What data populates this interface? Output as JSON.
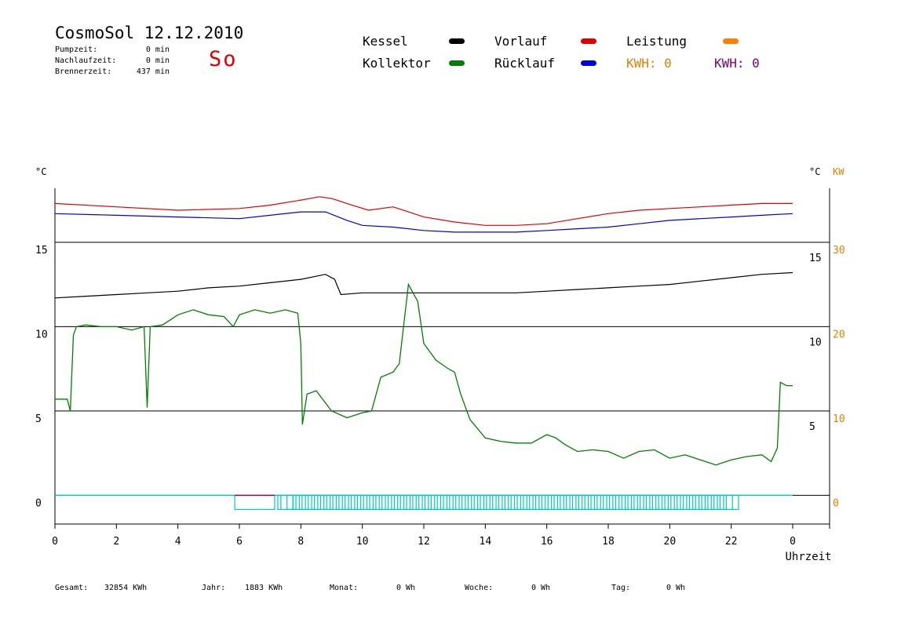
{
  "header": {
    "title": "CosmoSol 12.12.2010",
    "pump_label": "Pumpzeit:",
    "pump_value": "0 min",
    "run_on_label": "Nachlaufzeit:",
    "run_on_value": "0 min",
    "burner_label": "Brennerzeit:",
    "burner_value": "437 min",
    "weekday": "So"
  },
  "legend": {
    "kessel": "Kessel",
    "kollektor": "Kollektor",
    "vorlauf": "Vorlauf",
    "ruecklauf": "Rücklauf",
    "leistung": "Leistung",
    "kwh1": "KWH: 0",
    "kwh2": "KWH: 0"
  },
  "colors": {
    "kessel": "#000000",
    "kollektor": "#008000",
    "vorlauf": "#e00000",
    "ruecklauf": "#0000e0",
    "leistung": "#ff8000",
    "kwh2": "#800080",
    "pump": "#00c8c8"
  },
  "footer": {
    "gesamt_label": "Gesamt:",
    "gesamt_value": "32854 KWh",
    "jahr_label": "Jahr:",
    "jahr_value": "1883 KWh",
    "monat_label": "Monat:",
    "monat_value": "0 Wh",
    "woche_label": "Woche:",
    "woche_value": "0 Wh",
    "tag_label": "Tag:",
    "tag_value": "0 Wh"
  },
  "chart_data": {
    "type": "line",
    "xlabel": "Uhrzeit",
    "x_ticks": [
      "0",
      "2",
      "4",
      "6",
      "8",
      "10",
      "12",
      "14",
      "16",
      "18",
      "20",
      "22",
      "0"
    ],
    "xlim": [
      0,
      24
    ],
    "y_left": {
      "unit": "°C",
      "ticks": [
        0,
        5,
        10,
        15
      ],
      "ylim": [
        -1.7,
        18.2
      ]
    },
    "y_right_axis": {
      "unit": "°C",
      "ticks": [
        5,
        10,
        15
      ]
    },
    "y_right_power": {
      "unit": "KW",
      "ticks": [
        0,
        10,
        20,
        30
      ]
    },
    "grid": "horizontal",
    "series": [
      {
        "name": "Vorlauf",
        "axis": "left",
        "x": [
          0,
          2,
          4,
          6,
          7,
          8,
          8.6,
          9,
          9.5,
          10.2,
          11,
          11.5,
          12,
          13,
          14,
          15,
          16,
          17,
          18,
          19,
          20,
          21,
          22,
          23,
          24
        ],
        "y": [
          17.3,
          17.1,
          16.9,
          17.0,
          17.2,
          17.5,
          17.7,
          17.6,
          17.3,
          16.9,
          17.1,
          16.8,
          16.5,
          16.2,
          16.0,
          16.0,
          16.1,
          16.4,
          16.7,
          16.9,
          17.0,
          17.1,
          17.2,
          17.3,
          17.3
        ]
      },
      {
        "name": "Rücklauf",
        "axis": "left",
        "x": [
          0,
          2,
          4,
          6,
          7,
          8,
          8.8,
          9.5,
          10,
          11,
          12,
          13,
          14,
          15,
          16,
          17,
          18,
          19,
          20,
          21,
          22,
          23,
          24
        ],
        "y": [
          16.7,
          16.6,
          16.5,
          16.4,
          16.6,
          16.8,
          16.8,
          16.3,
          16.0,
          15.9,
          15.7,
          15.6,
          15.6,
          15.6,
          15.7,
          15.8,
          15.9,
          16.1,
          16.3,
          16.4,
          16.5,
          16.6,
          16.7
        ]
      },
      {
        "name": "Kessel",
        "axis": "left",
        "x": [
          0,
          1,
          2,
          3,
          4,
          5,
          6,
          7,
          8,
          8.8,
          9.1,
          9.3,
          10,
          11,
          12,
          13,
          14,
          15,
          16,
          17,
          18,
          19,
          20,
          21,
          22,
          23,
          24
        ],
        "y": [
          11.7,
          11.8,
          11.9,
          12.0,
          12.1,
          12.3,
          12.4,
          12.6,
          12.8,
          13.1,
          12.8,
          11.9,
          12.0,
          12.0,
          12.0,
          12.0,
          12.0,
          12.0,
          12.1,
          12.2,
          12.3,
          12.4,
          12.5,
          12.7,
          12.9,
          13.1,
          13.2
        ]
      },
      {
        "name": "Kollektor",
        "axis": "left",
        "x": [
          0,
          0.4,
          0.5,
          0.6,
          0.7,
          1.0,
          1.5,
          2.0,
          2.5,
          2.9,
          3.0,
          3.1,
          3.5,
          4.0,
          4.5,
          5.0,
          5.5,
          5.8,
          6.0,
          6.5,
          7.0,
          7.5,
          7.9,
          8.0,
          8.05,
          8.2,
          8.5,
          9.0,
          9.5,
          10.0,
          10.3,
          10.6,
          11.0,
          11.2,
          11.5,
          11.8,
          12.0,
          12.4,
          12.8,
          13.0,
          13.2,
          13.5,
          14.0,
          14.5,
          15.0,
          15.5,
          16.0,
          16.3,
          16.6,
          17.0,
          17.5,
          18.0,
          18.5,
          19.0,
          19.5,
          20.0,
          20.5,
          21.0,
          21.5,
          22.0,
          22.5,
          23.0,
          23.3,
          23.5,
          23.6,
          23.8,
          24.0
        ],
        "y": [
          5.7,
          5.7,
          5.0,
          9.5,
          10.0,
          10.1,
          10.0,
          10.0,
          9.8,
          10.0,
          5.2,
          10.0,
          10.1,
          10.7,
          11.0,
          10.7,
          10.6,
          10.0,
          10.7,
          11.0,
          10.8,
          11.0,
          10.8,
          9.0,
          4.2,
          6.0,
          6.2,
          5.0,
          4.6,
          4.9,
          5.0,
          7.0,
          7.3,
          7.8,
          12.5,
          11.5,
          9.0,
          8.0,
          7.5,
          7.3,
          6.0,
          4.5,
          3.4,
          3.2,
          3.1,
          3.1,
          3.6,
          3.4,
          3.0,
          2.6,
          2.7,
          2.6,
          2.2,
          2.6,
          2.7,
          2.2,
          2.4,
          2.1,
          1.8,
          2.1,
          2.3,
          2.4,
          2.0,
          2.8,
          6.7,
          6.5,
          6.5
        ]
      }
    ],
    "pump_state": {
      "label": "",
      "x": [
        5.85,
        7.25,
        7.35,
        7.55,
        7.75,
        7.95,
        8.15,
        8.35,
        8.55,
        8.75,
        8.95,
        9.15,
        9.35,
        9.55,
        9.75,
        9.95,
        10.15,
        10.35,
        10.55,
        10.75,
        10.95,
        11.15,
        11.35,
        11.55,
        11.75,
        11.95,
        12.15,
        12.35,
        12.55,
        12.75,
        12.95,
        13.15,
        13.35,
        13.55,
        13.75,
        13.95,
        14.15,
        14.35,
        14.55,
        14.75,
        14.95,
        15.15,
        15.35,
        15.55,
        15.75,
        15.95,
        16.15,
        16.35,
        16.55,
        16.75,
        16.95,
        17.15,
        17.35,
        17.55,
        17.75,
        17.95,
        18.15,
        18.35,
        18.55,
        18.75,
        18.95,
        19.15,
        19.35,
        19.55,
        19.75,
        19.95,
        20.15,
        20.35,
        20.55,
        20.75,
        20.95,
        21.15,
        21.35,
        21.55,
        21.75
      ]
    }
  }
}
